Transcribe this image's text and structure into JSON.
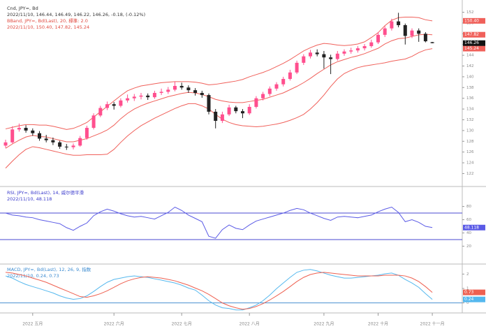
{
  "chart_data": [
    {
      "type": "candlestick",
      "header": [
        {
          "text": "Cnd, JPY=, Bd",
          "color": "#333333"
        },
        {
          "text": "2022/11/10, 146.44, 146.49, 146.22, 146.26, -0.18, (-0.12%)",
          "color": "#333333"
        },
        {
          "text": "BBand, JPY=, Bd(Last), 20, 標準: 2.0",
          "color": "#e0483e"
        },
        {
          "text": "2022/11/10, 150.40, 147.82, 145.24",
          "color": "#e0483e"
        }
      ],
      "up_color": "#ff4f8e",
      "down_color": "#222222",
      "candles": [
        [
          127.2,
          128.3,
          126.8,
          127.8
        ],
        [
          127.8,
          130.8,
          127.6,
          130.2
        ],
        [
          130.2,
          131.3,
          129.8,
          130.5
        ],
        [
          130.5,
          131.0,
          129.6,
          130.0
        ],
        [
          130.0,
          130.4,
          129.0,
          129.5
        ],
        [
          129.5,
          129.9,
          128.1,
          128.5
        ],
        [
          128.5,
          129.2,
          127.8,
          128.2
        ],
        [
          128.2,
          128.7,
          127.3,
          127.8
        ],
        [
          127.8,
          128.1,
          126.6,
          127.0
        ],
        [
          127.0,
          127.5,
          126.4,
          126.9
        ],
        [
          126.9,
          127.6,
          126.5,
          127.2
        ],
        [
          127.2,
          129.0,
          127.0,
          128.6
        ],
        [
          128.6,
          130.9,
          128.3,
          130.5
        ],
        [
          130.5,
          133.2,
          130.2,
          132.8
        ],
        [
          132.8,
          134.6,
          132.5,
          134.2
        ],
        [
          134.2,
          135.4,
          133.8,
          134.9
        ],
        [
          134.9,
          135.3,
          133.9,
          134.6
        ],
        [
          134.6,
          136.0,
          134.3,
          135.6
        ],
        [
          135.6,
          136.7,
          135.2,
          136.0
        ],
        [
          136.0,
          136.8,
          135.5,
          136.3
        ],
        [
          136.3,
          137.0,
          135.8,
          136.5
        ],
        [
          136.5,
          136.9,
          135.7,
          136.2
        ],
        [
          136.2,
          137.4,
          135.9,
          137.0
        ],
        [
          137.0,
          137.8,
          136.6,
          137.2
        ],
        [
          137.2,
          138.1,
          136.8,
          137.6
        ],
        [
          137.6,
          139.1,
          137.3,
          138.3
        ],
        [
          138.3,
          138.9,
          137.6,
          138.0
        ],
        [
          138.0,
          138.4,
          137.0,
          137.5
        ],
        [
          137.5,
          137.9,
          136.5,
          137.0
        ],
        [
          137.0,
          137.4,
          136.1,
          136.6
        ],
        [
          136.6,
          136.9,
          133.0,
          133.5
        ],
        [
          133.5,
          134.0,
          130.4,
          131.8
        ],
        [
          131.8,
          133.5,
          131.4,
          133.0
        ],
        [
          133.0,
          134.8,
          132.7,
          134.3
        ],
        [
          134.3,
          134.6,
          133.2,
          133.6
        ],
        [
          133.6,
          134.0,
          132.3,
          133.2
        ],
        [
          133.2,
          134.9,
          132.9,
          134.4
        ],
        [
          134.4,
          136.4,
          134.1,
          136.0
        ],
        [
          136.0,
          137.2,
          135.6,
          136.8
        ],
        [
          136.8,
          138.2,
          136.4,
          137.8
        ],
        [
          137.8,
          139.0,
          137.4,
          138.6
        ],
        [
          138.6,
          140.0,
          138.2,
          139.6
        ],
        [
          139.6,
          141.3,
          139.3,
          140.8
        ],
        [
          140.8,
          143.0,
          140.5,
          142.6
        ],
        [
          142.6,
          144.2,
          142.2,
          143.8
        ],
        [
          143.8,
          145.0,
          143.4,
          144.5
        ],
        [
          144.5,
          145.1,
          143.8,
          144.2
        ],
        [
          144.2,
          144.8,
          141.5,
          143.6
        ],
        [
          143.6,
          144.1,
          140.5,
          143.3
        ],
        [
          143.3,
          144.8,
          143.0,
          144.3
        ],
        [
          144.3,
          145.1,
          143.9,
          144.7
        ],
        [
          144.7,
          145.4,
          144.3,
          144.9
        ],
        [
          144.9,
          145.7,
          144.5,
          145.3
        ],
        [
          145.3,
          146.1,
          144.9,
          145.7
        ],
        [
          145.7,
          146.9,
          145.4,
          146.4
        ],
        [
          146.4,
          148.3,
          146.1,
          147.8
        ],
        [
          147.8,
          149.4,
          147.4,
          149.0
        ],
        [
          149.0,
          150.8,
          148.6,
          150.3
        ],
        [
          150.3,
          151.9,
          149.2,
          149.6
        ],
        [
          149.6,
          149.9,
          146.0,
          147.6
        ],
        [
          147.6,
          149.0,
          147.2,
          148.6
        ],
        [
          148.6,
          149.0,
          146.5,
          148.0
        ],
        [
          148.0,
          148.3,
          146.4,
          146.6
        ],
        [
          146.44,
          146.49,
          146.22,
          146.26
        ]
      ],
      "close_tag_color": "#111111",
      "series": [
        {
          "color": "#f0605a",
          "value_label": "150.40",
          "values": [
            130.3,
            130.6,
            130.9,
            131.1,
            131.1,
            131.0,
            131.0,
            130.8,
            130.5,
            130.2,
            130.4,
            130.9,
            131.5,
            132.5,
            133.5,
            134.5,
            135.5,
            136.5,
            137.4,
            137.9,
            138.3,
            138.5,
            138.7,
            138.9,
            139.0,
            139.1,
            139.1,
            139.1,
            139.0,
            138.8,
            138.5,
            138.6,
            138.8,
            139.0,
            139.2,
            139.5,
            140.0,
            140.4,
            140.8,
            141.3,
            141.9,
            142.5,
            143.2,
            144.0,
            144.8,
            145.4,
            145.9,
            146.2,
            146.1,
            145.9,
            145.8,
            145.9,
            146.1,
            146.5,
            147.3,
            148.2,
            149.5,
            150.5,
            151.0,
            151.1,
            151.1,
            151.0,
            150.6,
            150.4
          ]
        },
        {
          "color": "#f0605a",
          "values": [
            126.7,
            127.5,
            128.2,
            128.8,
            129.1,
            128.9,
            128.8,
            128.5,
            128.2,
            127.9,
            127.9,
            128.2,
            128.5,
            129.0,
            129.5,
            130.1,
            131.0,
            132.2,
            133.2,
            134.0,
            134.6,
            135.1,
            135.5,
            135.9,
            136.3,
            136.6,
            136.9,
            137.1,
            137.0,
            136.7,
            136.3,
            135.8,
            135.5,
            135.3,
            135.2,
            135.2,
            135.4,
            135.6,
            135.8,
            136.2,
            136.6,
            137.0,
            137.6,
            138.2,
            138.9,
            139.7,
            140.6,
            141.4,
            142.2,
            142.8,
            143.2,
            143.6,
            143.9,
            144.3,
            144.8,
            145.3,
            146.1,
            146.7,
            147.1,
            147.2,
            147.5,
            147.8,
            147.9,
            147.82
          ]
        },
        {
          "color": "#f0605a",
          "values": [
            123.0,
            124.3,
            125.5,
            126.5,
            127.0,
            126.8,
            126.5,
            126.2,
            125.9,
            125.6,
            125.4,
            125.4,
            125.5,
            125.5,
            125.5,
            125.6,
            126.5,
            127.8,
            129.0,
            130.0,
            130.9,
            131.6,
            132.3,
            132.9,
            133.5,
            134.1,
            134.6,
            135.0,
            135.0,
            134.6,
            134.0,
            133.0,
            132.1,
            131.5,
            131.1,
            130.9,
            130.8,
            130.7,
            130.8,
            131.0,
            131.2,
            131.5,
            131.9,
            132.4,
            133.0,
            134.0,
            135.2,
            136.6,
            138.2,
            139.6,
            140.6,
            141.2,
            141.7,
            142.0,
            142.2,
            142.4,
            142.6,
            142.9,
            143.1,
            143.3,
            143.8,
            144.5,
            145.0,
            145.24
          ]
        }
      ],
      "ylim": [
        120.5,
        153.5
      ],
      "yticks": [
        122,
        124,
        126,
        128,
        130,
        132,
        134,
        136,
        138,
        140,
        142,
        144,
        146,
        148,
        150,
        152
      ]
    },
    {
      "type": "line",
      "header": [
        {
          "text": "RSI, JPY=, Bd(Last), 14, 威尔德平滑",
          "color": "#3a3acc"
        },
        {
          "text": "2022/11/10, 48.118",
          "color": "#3a3acc"
        }
      ],
      "series": [
        {
          "color": "#5a5ae6",
          "values": [
            70,
            67,
            66,
            64,
            63,
            60,
            58,
            56,
            54,
            48,
            44,
            50,
            55,
            66,
            72,
            76,
            73,
            69,
            66,
            64,
            65,
            63,
            61,
            66,
            71,
            79,
            74,
            67,
            62,
            57,
            35,
            32,
            45,
            52,
            47,
            45,
            52,
            58,
            61,
            64,
            67,
            70,
            74,
            77,
            75,
            70,
            66,
            62,
            59,
            64,
            65,
            64,
            63,
            65,
            67,
            72,
            76,
            79,
            71,
            57,
            60,
            56,
            50,
            48.118
          ]
        }
      ],
      "levels": [
        70,
        30
      ],
      "level_color": "#4a4ad0",
      "ylim": [
        -7,
        107
      ],
      "yticks": [
        20,
        40,
        60,
        80
      ]
    },
    {
      "type": "line",
      "header": [
        {
          "text": "MACD, JPY=, Bd(Last), 12, 26, 9, 指数",
          "color": "#3a8ad0"
        },
        {
          "text": "2022/11/10, 0.24, 0.73",
          "color": "#3a8ad0"
        }
      ],
      "series": [
        {
          "color": "#55b8ee",
          "values": [
            1.87,
            1.72,
            1.48,
            1.28,
            1.13,
            0.99,
            0.84,
            0.69,
            0.49,
            0.34,
            0.25,
            0.3,
            0.49,
            0.79,
            1.13,
            1.43,
            1.63,
            1.72,
            1.82,
            1.87,
            1.82,
            1.77,
            1.67,
            1.58,
            1.48,
            1.38,
            1.23,
            1.03,
            0.89,
            0.54,
            0.15,
            -0.15,
            -0.34,
            -0.39,
            -0.49,
            -0.49,
            -0.34,
            -0.15,
            0.15,
            0.54,
            0.99,
            1.38,
            1.77,
            2.12,
            2.27,
            2.32,
            2.22,
            2.07,
            1.92,
            1.82,
            1.72,
            1.72,
            1.77,
            1.82,
            1.87,
            1.92,
            2.02,
            2.07,
            1.92,
            1.63,
            1.38,
            1.08,
            0.64,
            0.24
          ]
        },
        {
          "color": "#ee6050",
          "values": [
            2.12,
            2.07,
            1.97,
            1.87,
            1.72,
            1.58,
            1.43,
            1.23,
            1.03,
            0.84,
            0.64,
            0.44,
            0.39,
            0.49,
            0.64,
            0.84,
            1.08,
            1.33,
            1.53,
            1.67,
            1.77,
            1.82,
            1.77,
            1.72,
            1.63,
            1.53,
            1.38,
            1.23,
            1.03,
            0.84,
            0.59,
            0.3,
            0,
            -0.2,
            -0.34,
            -0.44,
            -0.39,
            -0.25,
            -0.05,
            0.2,
            0.49,
            0.79,
            1.13,
            1.48,
            1.77,
            1.97,
            2.07,
            2.12,
            2.07,
            2.02,
            1.97,
            1.92,
            1.87,
            1.87,
            1.87,
            1.87,
            1.92,
            1.92,
            1.92,
            1.87,
            1.72,
            1.48,
            1.13,
            0.73
          ]
        }
      ],
      "levels": [
        0
      ],
      "level_color": "#4a90d0",
      "ylim": [
        -0.6,
        2.6
      ],
      "yticks": [
        0,
        1,
        2
      ],
      "months": [
        {
          "at": 4,
          "label": "2022 五月"
        },
        {
          "at": 16,
          "label": "2022 六月"
        },
        {
          "at": 26,
          "label": "2022 七月"
        },
        {
          "at": 36,
          "label": "2022 八月"
        },
        {
          "at": 47,
          "label": "2022 九月"
        },
        {
          "at": 55,
          "label": "2022 十月"
        },
        {
          "at": 63,
          "label": "2022 十一月"
        }
      ]
    }
  ]
}
